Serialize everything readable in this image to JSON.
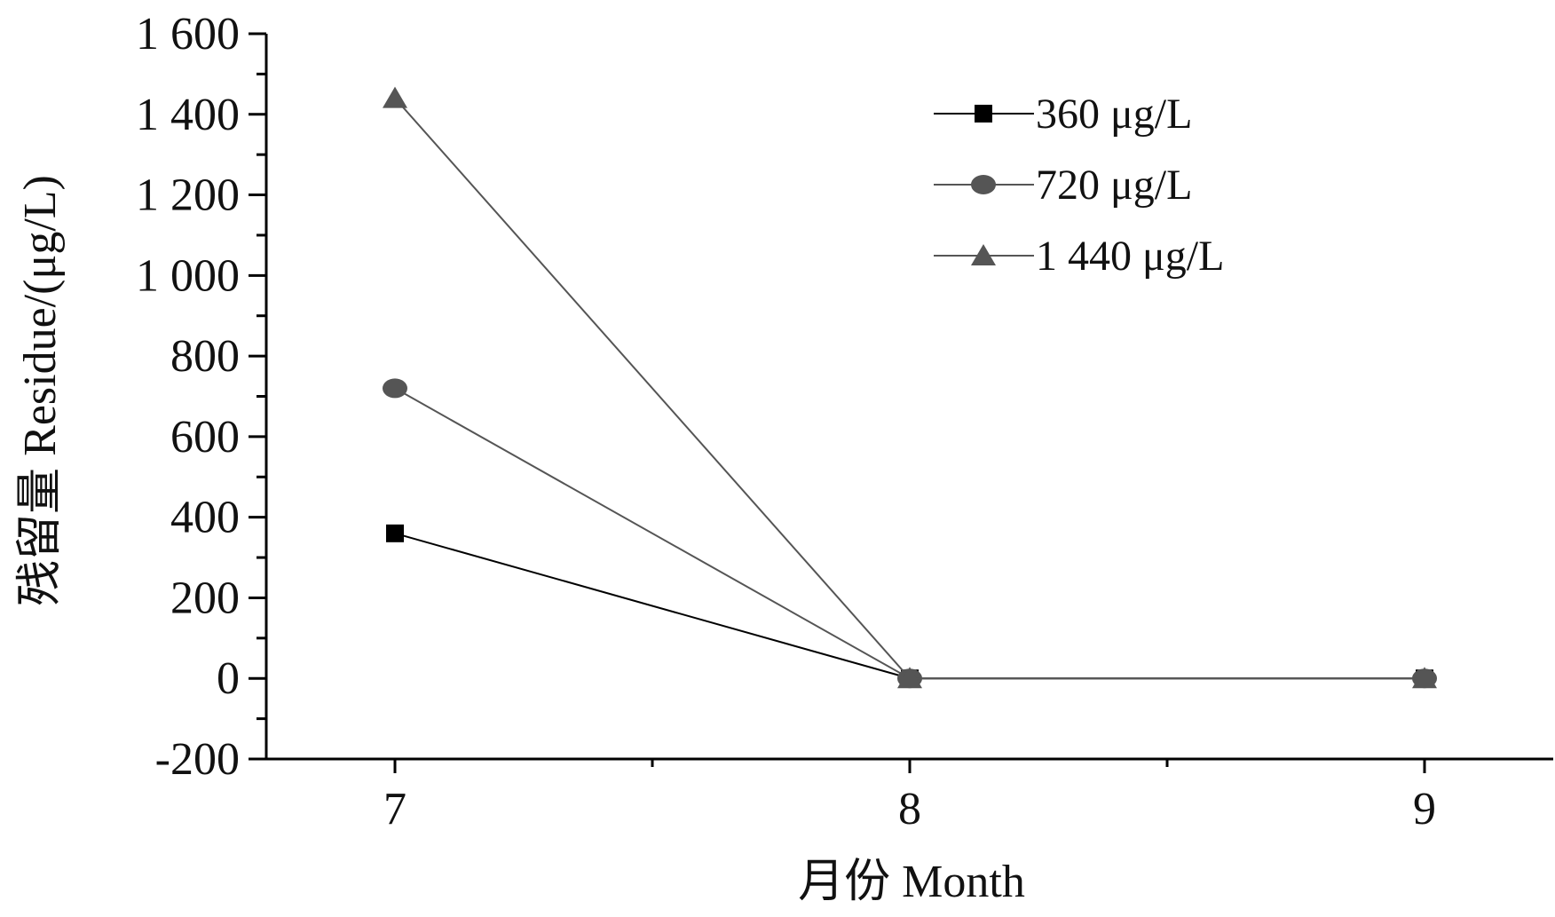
{
  "chart_data": {
    "type": "line",
    "x": [
      7,
      8,
      9
    ],
    "x_ticks": [
      "7",
      "8",
      "9"
    ],
    "xlim": [
      6.75,
      9.25
    ],
    "ylim": [
      -200,
      1600
    ],
    "y_ticks": [
      "-200",
      "0",
      "200",
      "400",
      "600",
      "800",
      "1 000",
      "1 200",
      "1 400",
      "1 600"
    ],
    "xlabel": "月份 Month",
    "ylabel": "残留量 Residue/(μg/L)",
    "legend_position": "top-right",
    "series": [
      {
        "name": "360 μg/L",
        "marker": "square",
        "color": "#000000",
        "values": [
          360,
          0,
          0
        ]
      },
      {
        "name": "720 μg/L",
        "marker": "circle",
        "color": "#555555",
        "values": [
          720,
          0,
          0
        ]
      },
      {
        "name": "1 440 μg/L",
        "marker": "triangle",
        "color": "#555555",
        "values": [
          1440,
          0,
          0
        ]
      }
    ]
  }
}
